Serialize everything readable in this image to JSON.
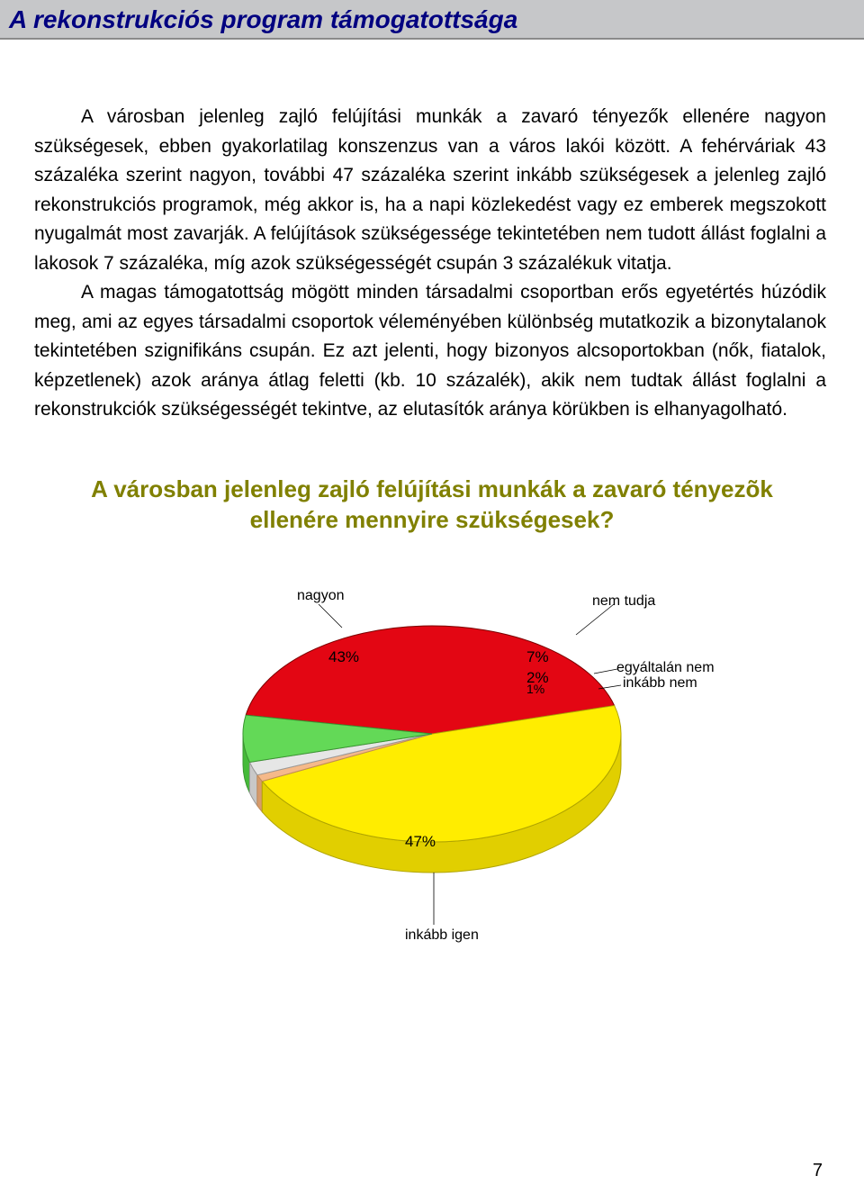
{
  "title": "A rekonstrukciós program támogatottsága",
  "paragraphs": {
    "p1": "A városban jelenleg zajló felújítási munkák a zavaró tényezők ellenére nagyon szükségesek, ebben gyakorlatilag konszenzus van a város lakói között. A fehérváriak 43 százaléka szerint nagyon, további 47 százaléka szerint inkább szükségesek a jelenleg zajló rekonstrukciós programok, még akkor is, ha a napi közlekedést vagy ez emberek megszokott nyugalmát most zavarják. A felújítások szükségessége tekintetében nem tudott állást foglalni a lakosok 7 százaléka, míg azok szükségességét csupán 3 százalékuk vitatja.",
    "p2": "A magas támogatottság mögött minden társadalmi csoportban erős egyetértés húzódik meg, ami az egyes társadalmi csoportok véleményében különbség mutatkozik a bizonytalanok tekintetében szignifikáns csupán. Ez azt jelenti, hogy bizonyos alcsoportokban (nők, fiatalok, képzetlenek) azok aránya átlag feletti (kb. 10 százalék), akik nem tudtak állást foglalni a rekonstrukciók szükségességét tekintve, az elutasítók aránya körükben is elhanyagolható."
  },
  "chart": {
    "title": "A városban jelenleg zajló felújítási munkák a zavaró tényezõk ellenére mennyire szükségesek?",
    "type": "pie",
    "slices": [
      {
        "label": "nagyon",
        "value": 43,
        "value_label": "43%",
        "color": "#e30613",
        "stroke": "#7a0000"
      },
      {
        "label": "inkább igen",
        "value": 47,
        "value_label": "47%",
        "color": "#ffed00",
        "stroke": "#b0a400"
      },
      {
        "label": "inkább nem",
        "value": 1,
        "value_label": "1%",
        "color": "#f5b98a",
        "stroke": "#c28b5a"
      },
      {
        "label": "egyáltalán nem",
        "value": 2,
        "value_label": "2%",
        "color": "#e6e6e6",
        "stroke": "#999999"
      },
      {
        "label": "nem tudja",
        "value": 7,
        "value_label": "7%",
        "color": "#63d957",
        "stroke": "#3a9431"
      }
    ],
    "background": "#ffffff",
    "label_fontsize": 17,
    "callout_fontsize": 16
  },
  "page_number": "7"
}
